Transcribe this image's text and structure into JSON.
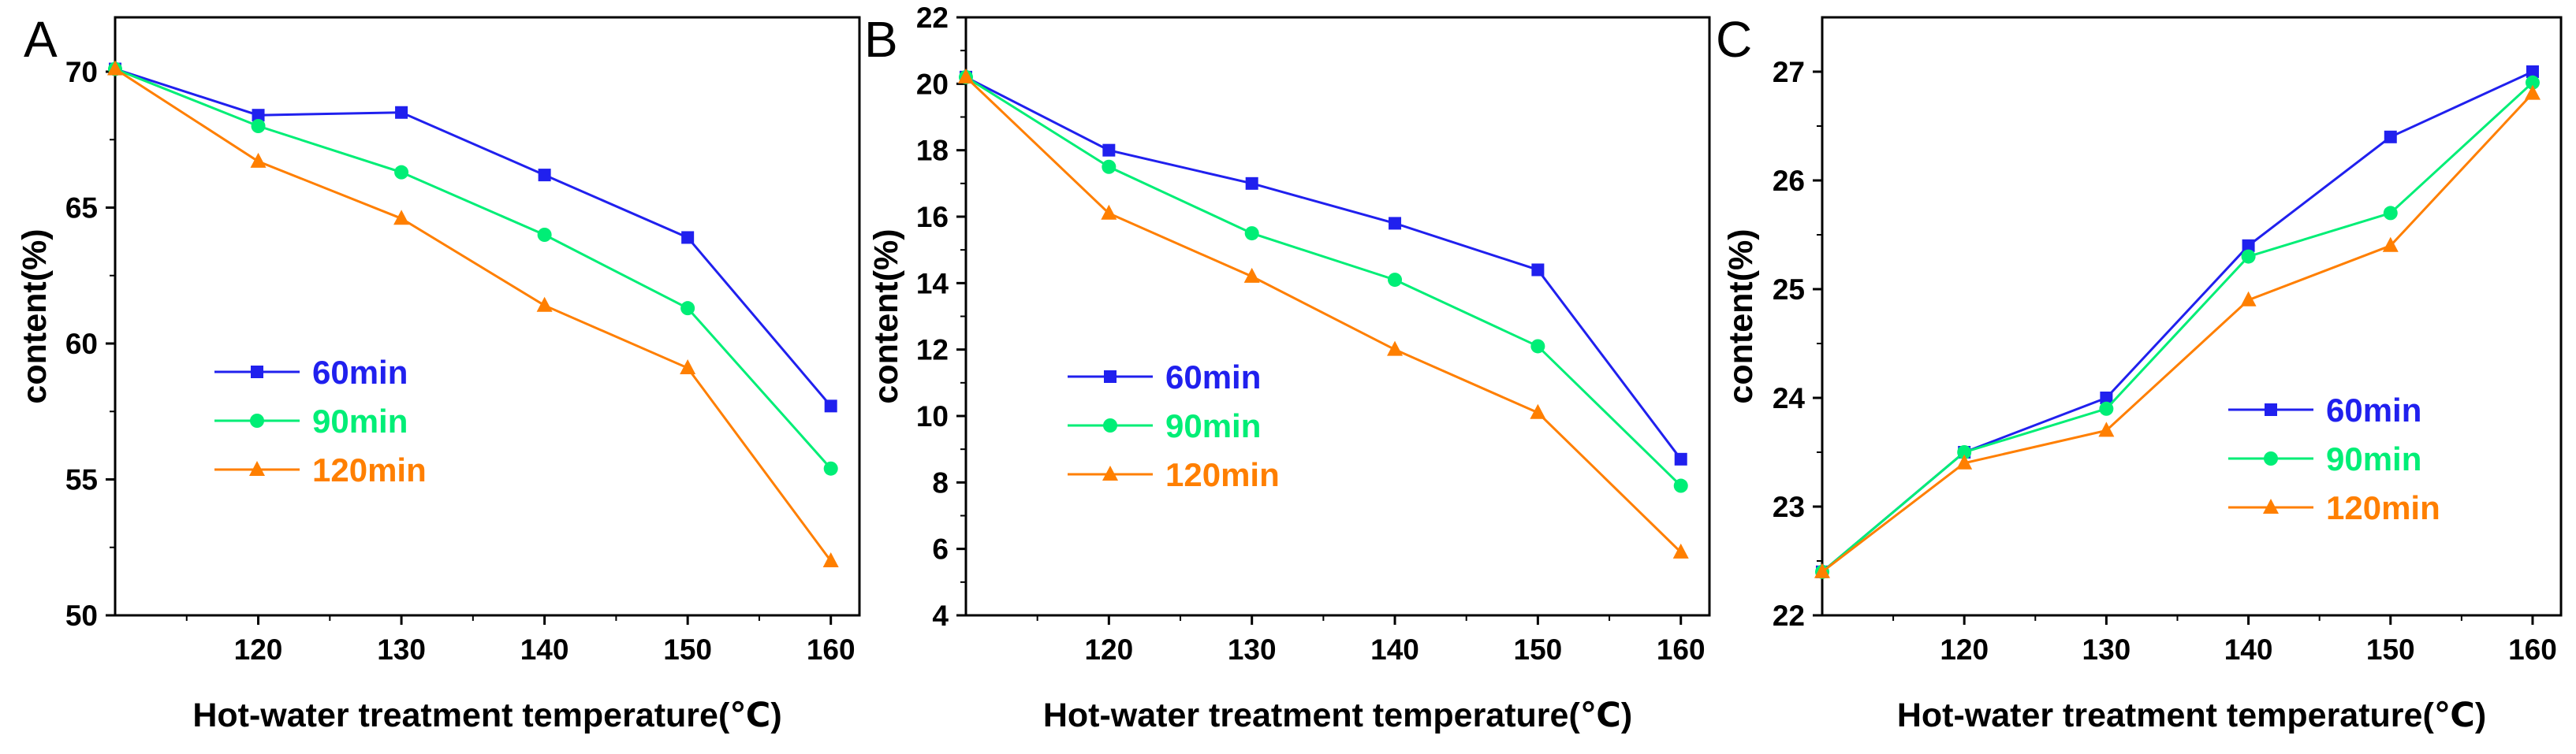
{
  "colors": {
    "60min": "#2020ee",
    "90min": "#00ee76",
    "120min": "#ff7f00",
    "axis": "#000000"
  },
  "chart_data": [
    {
      "panel": "A",
      "type": "line",
      "x": [
        110,
        120,
        130,
        140,
        150,
        160
      ],
      "xticks": [
        120,
        130,
        140,
        150,
        160
      ],
      "xlim": [
        110,
        162
      ],
      "ylim": [
        50,
        72
      ],
      "yticks": [
        50,
        55,
        60,
        65,
        70
      ],
      "xlabel": "Hot-water treatment temperature(℃)",
      "ylabel": "content(%)",
      "legend_position": "center-left",
      "series": [
        {
          "name": "60min",
          "marker": "square",
          "values": [
            70.1,
            68.4,
            68.5,
            66.2,
            63.9,
            57.7
          ]
        },
        {
          "name": "90min",
          "marker": "circle",
          "values": [
            70.1,
            68.0,
            66.3,
            64.0,
            61.3,
            55.4
          ]
        },
        {
          "name": "120min",
          "marker": "triangle",
          "values": [
            70.1,
            66.7,
            64.6,
            61.4,
            59.1,
            52.0
          ]
        }
      ]
    },
    {
      "panel": "B",
      "type": "line",
      "x": [
        110,
        120,
        130,
        140,
        150,
        160
      ],
      "xticks": [
        120,
        130,
        140,
        150,
        160
      ],
      "xlim": [
        110,
        162
      ],
      "ylim": [
        4,
        22
      ],
      "yticks": [
        4,
        6,
        8,
        10,
        12,
        14,
        16,
        18,
        20,
        22
      ],
      "xlabel": "Hot-water treatment temperature(℃)",
      "ylabel": "content(%)",
      "legend_position": "center-left",
      "series": [
        {
          "name": "60min",
          "marker": "square",
          "values": [
            20.2,
            18.0,
            17.0,
            15.8,
            14.4,
            8.7
          ]
        },
        {
          "name": "90min",
          "marker": "circle",
          "values": [
            20.2,
            17.5,
            15.5,
            14.1,
            12.1,
            7.9
          ]
        },
        {
          "name": "120min",
          "marker": "triangle",
          "values": [
            20.2,
            16.1,
            14.2,
            12.0,
            10.1,
            5.9
          ]
        }
      ]
    },
    {
      "panel": "C",
      "type": "line",
      "x": [
        110,
        120,
        130,
        140,
        150,
        160
      ],
      "xticks": [
        120,
        130,
        140,
        150,
        160
      ],
      "xlim": [
        110,
        162
      ],
      "ylim": [
        22,
        27.5
      ],
      "yticks": [
        22,
        23,
        24,
        25,
        26,
        27
      ],
      "xlabel": "Hot-water treatment temperature(℃)",
      "ylabel": "content(%)",
      "legend_position": "center-right",
      "series": [
        {
          "name": "60min",
          "marker": "square",
          "values": [
            22.4,
            23.5,
            24.0,
            25.4,
            26.4,
            27.0
          ]
        },
        {
          "name": "90min",
          "marker": "circle",
          "values": [
            22.4,
            23.5,
            23.9,
            25.3,
            25.7,
            26.9
          ]
        },
        {
          "name": "120min",
          "marker": "triangle",
          "values": [
            22.4,
            23.4,
            23.7,
            24.9,
            25.4,
            26.8
          ]
        }
      ]
    }
  ]
}
